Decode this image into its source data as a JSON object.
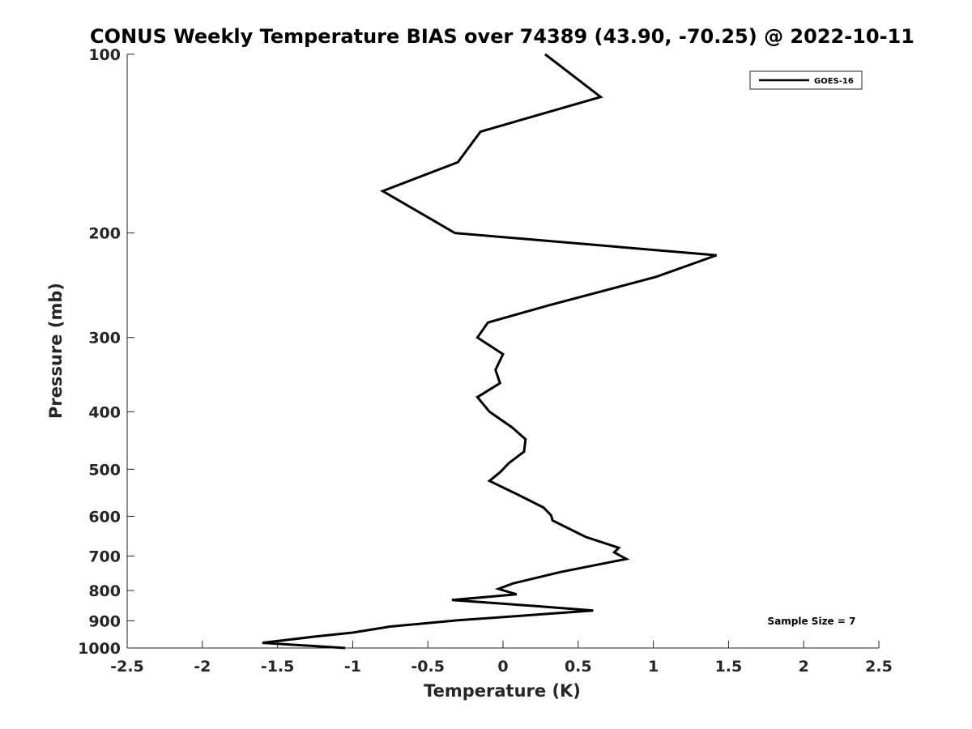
{
  "chart_data": {
    "type": "line",
    "title": "CONUS Weekly Temperature BIAS over 74389 (43.90, -70.25) @ 2022-10-11",
    "xlabel": "Temperature (K)",
    "ylabel": "Pressure (mb)",
    "xlim": [
      -2.5,
      2.5
    ],
    "ylim": [
      100,
      1000
    ],
    "y_scale": "log",
    "y_reversed": true,
    "x_ticks": [
      -2.5,
      -2,
      -1.5,
      -1,
      -0.5,
      0,
      0.5,
      1,
      1.5,
      2,
      2.5
    ],
    "x_tick_labels": [
      "-2.5",
      "-2",
      "-1.5",
      "-1",
      "-0.5",
      "0",
      "0.5",
      "1",
      "1.5",
      "2",
      "2.5"
    ],
    "y_ticks": [
      100,
      200,
      300,
      400,
      500,
      600,
      700,
      800,
      900,
      1000
    ],
    "y_tick_labels": [
      "100",
      "200",
      "300",
      "400",
      "500",
      "600",
      "700",
      "800",
      "900",
      "1000"
    ],
    "grid": false,
    "legend_position": "top-right",
    "series": [
      {
        "name": "GOES-16",
        "color": "#000000",
        "points": [
          {
            "x": 0.28,
            "y": 100
          },
          {
            "x": 0.65,
            "y": 118
          },
          {
            "x": -0.15,
            "y": 135
          },
          {
            "x": -0.3,
            "y": 152
          },
          {
            "x": -0.8,
            "y": 170
          },
          {
            "x": -0.32,
            "y": 200
          },
          {
            "x": 1.42,
            "y": 218
          },
          {
            "x": 1.02,
            "y": 237
          },
          {
            "x": 0.3,
            "y": 265
          },
          {
            "x": -0.1,
            "y": 283
          },
          {
            "x": -0.17,
            "y": 300
          },
          {
            "x": 0.0,
            "y": 320
          },
          {
            "x": -0.05,
            "y": 340
          },
          {
            "x": -0.02,
            "y": 358
          },
          {
            "x": -0.17,
            "y": 378
          },
          {
            "x": -0.09,
            "y": 400
          },
          {
            "x": 0.06,
            "y": 425
          },
          {
            "x": 0.15,
            "y": 445
          },
          {
            "x": 0.14,
            "y": 467
          },
          {
            "x": 0.04,
            "y": 488
          },
          {
            "x": -0.02,
            "y": 506
          },
          {
            "x": -0.09,
            "y": 523
          },
          {
            "x": 0.12,
            "y": 555
          },
          {
            "x": 0.27,
            "y": 580
          },
          {
            "x": 0.32,
            "y": 598
          },
          {
            "x": 0.33,
            "y": 610
          },
          {
            "x": 0.55,
            "y": 650
          },
          {
            "x": 0.77,
            "y": 678
          },
          {
            "x": 0.74,
            "y": 690
          },
          {
            "x": 0.82,
            "y": 708
          },
          {
            "x": 0.38,
            "y": 745
          },
          {
            "x": 0.07,
            "y": 778
          },
          {
            "x": -0.03,
            "y": 795
          },
          {
            "x": 0.09,
            "y": 812
          },
          {
            "x": -0.34,
            "y": 830
          },
          {
            "x": 0.22,
            "y": 850
          },
          {
            "x": 0.6,
            "y": 865
          },
          {
            "x": 0.19,
            "y": 880
          },
          {
            "x": -0.3,
            "y": 898
          },
          {
            "x": -0.75,
            "y": 920
          },
          {
            "x": -1.0,
            "y": 942
          },
          {
            "x": -1.27,
            "y": 958
          },
          {
            "x": -1.6,
            "y": 980
          },
          {
            "x": -1.05,
            "y": 1000
          }
        ]
      }
    ],
    "annotations": [
      {
        "text": "Sample Size = 7",
        "position": "bottom-right"
      }
    ]
  }
}
